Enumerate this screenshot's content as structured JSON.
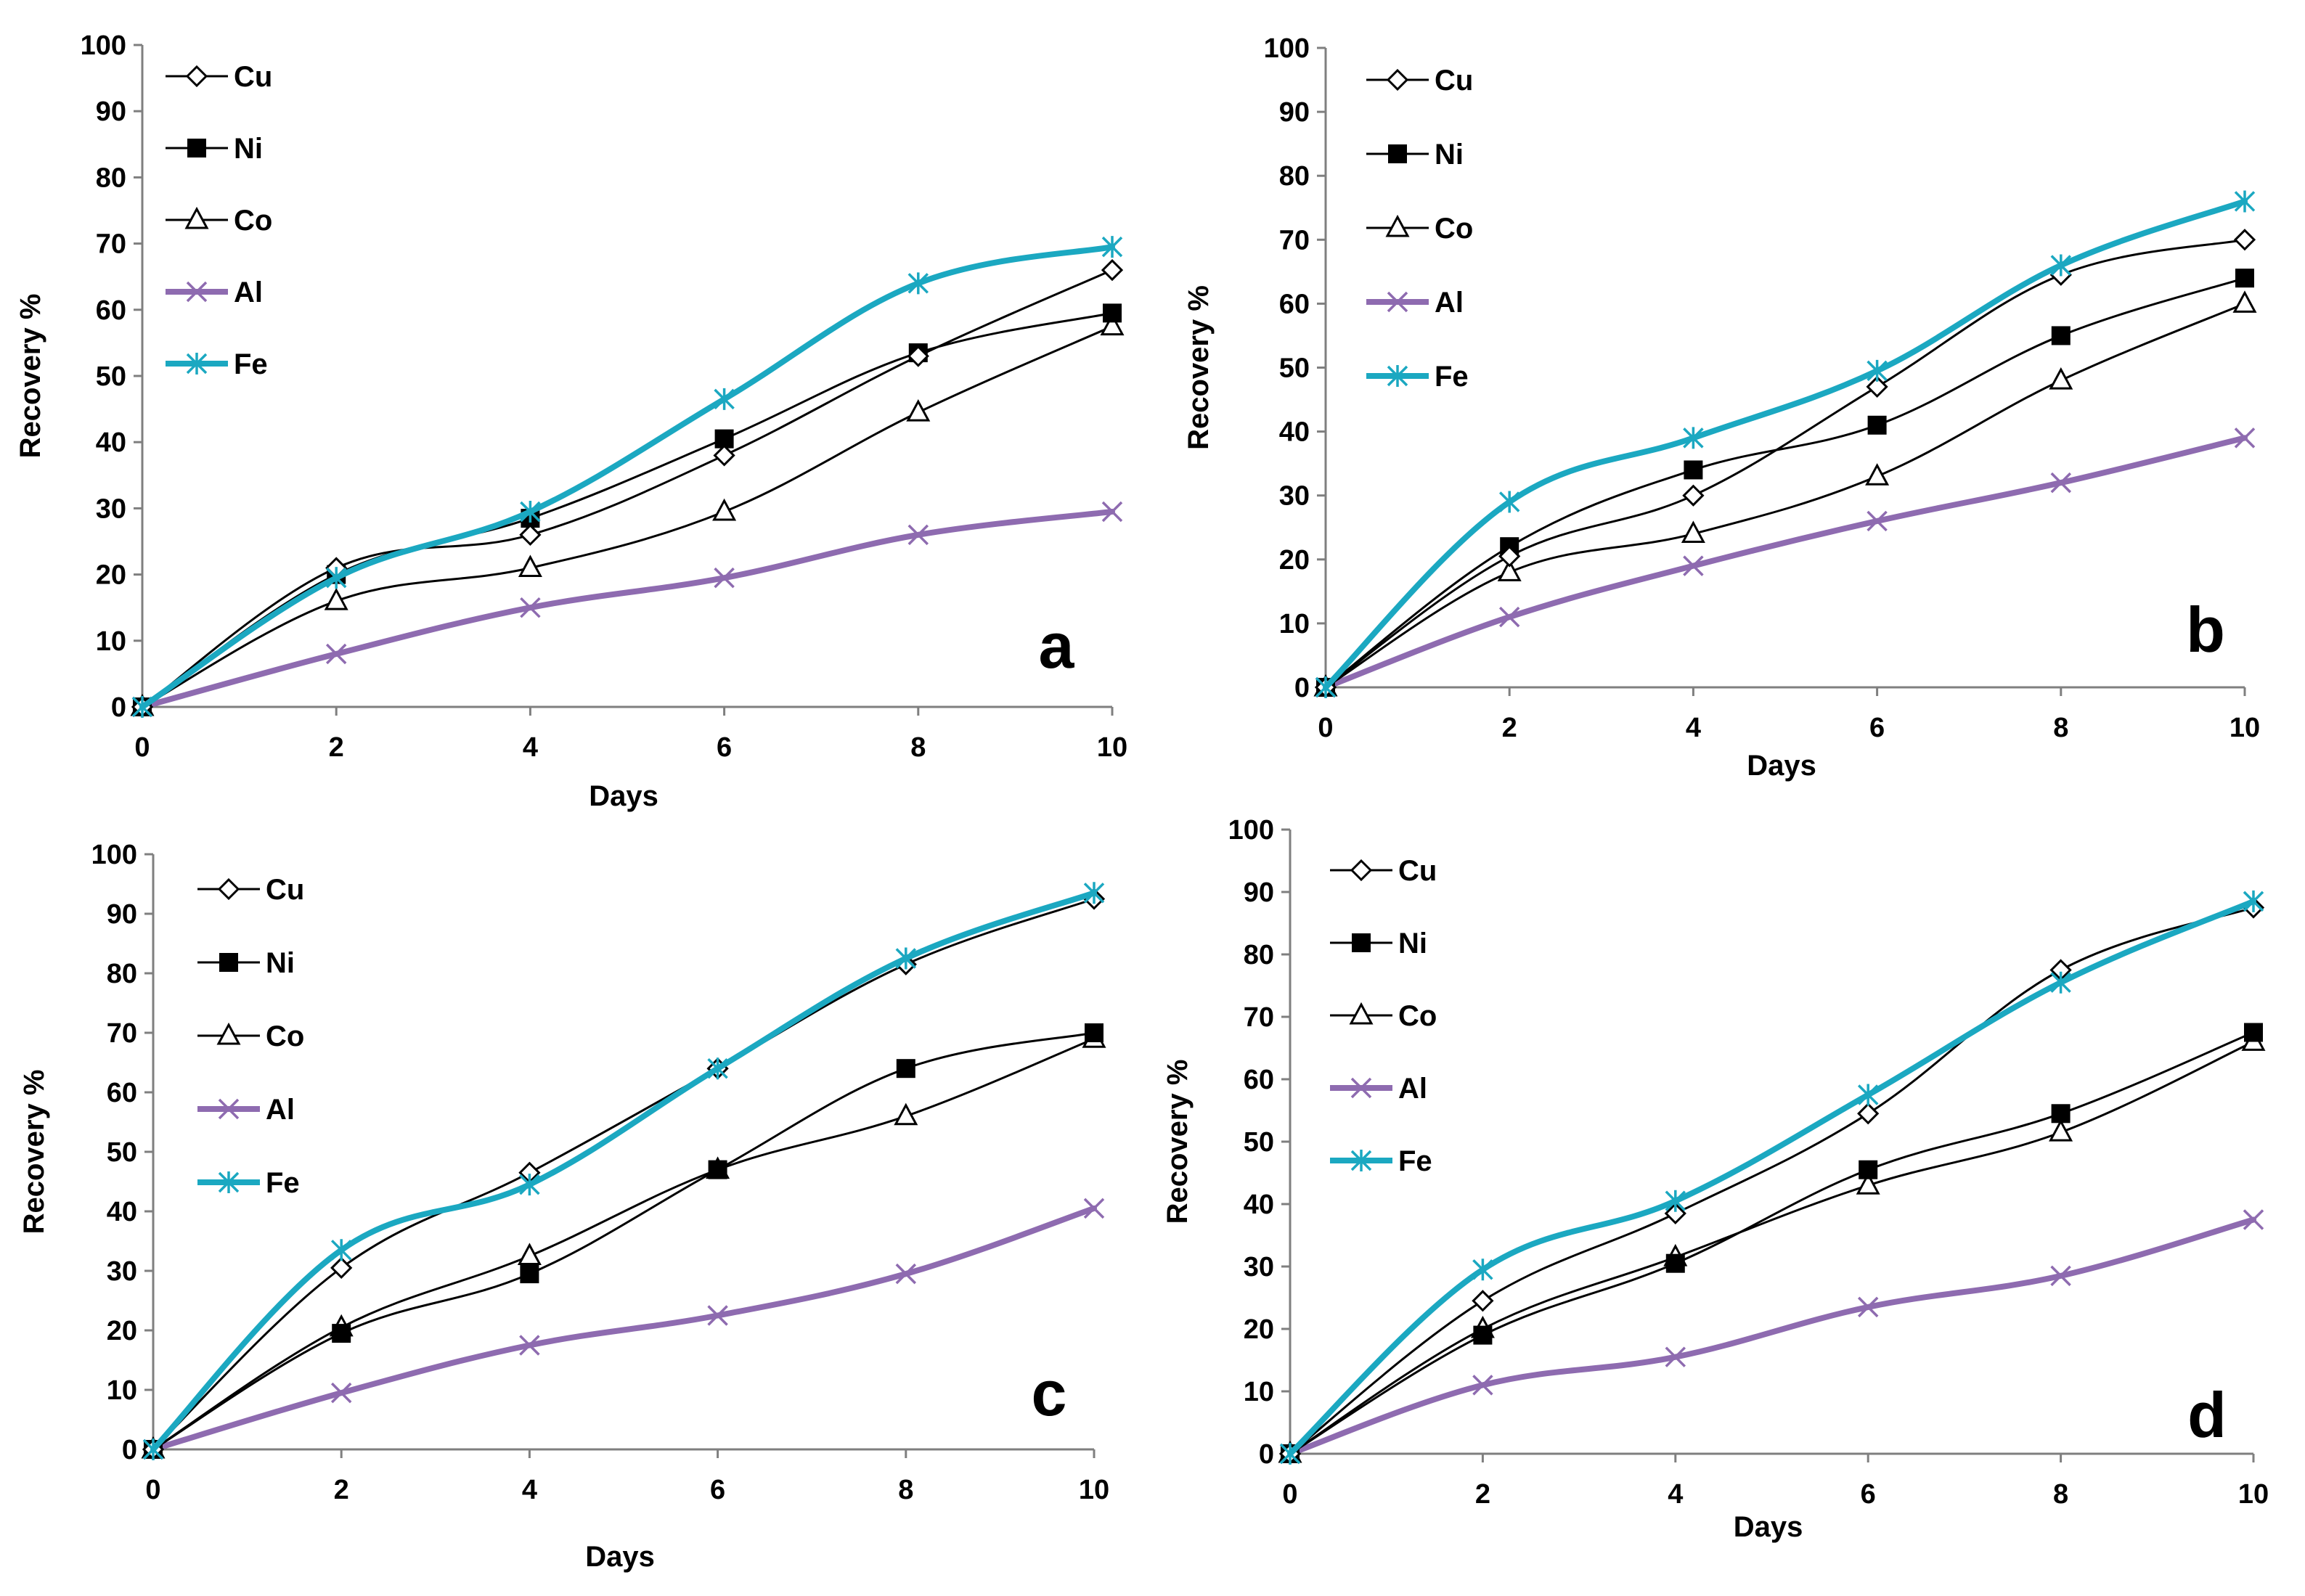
{
  "figure": {
    "series_styles": [
      {
        "name": "Cu",
        "color": "#000000",
        "marker": "diamond-open",
        "width": "thin"
      },
      {
        "name": "Ni",
        "color": "#000000",
        "marker": "square-filled",
        "width": "thin"
      },
      {
        "name": "Co",
        "color": "#000000",
        "marker": "triangle-open",
        "width": "thin"
      },
      {
        "name": "Al",
        "color": "#8e6bb0",
        "marker": "x",
        "width": "thick"
      },
      {
        "name": "Fe",
        "color": "#1ba8c1",
        "marker": "star",
        "width": "thick"
      }
    ]
  },
  "chart_data": [
    {
      "type": "line",
      "panel_label": "a",
      "xlabel": "Days",
      "ylabel": "Recovery %",
      "x": [
        0,
        2,
        4,
        6,
        8,
        10
      ],
      "xlim": [
        0,
        10
      ],
      "ylim": [
        0,
        100
      ],
      "xticks": [
        "0",
        "2",
        "4",
        "6",
        "8",
        "10"
      ],
      "yticks": [
        "0",
        "10",
        "20",
        "30",
        "40",
        "50",
        "60",
        "70",
        "80",
        "90",
        "100"
      ],
      "legend_position": "top-left",
      "series": [
        {
          "name": "Cu",
          "values": [
            0,
            21,
            26,
            38,
            53,
            66
          ]
        },
        {
          "name": "Ni",
          "values": [
            0,
            20,
            28.5,
            40.5,
            53.5,
            59.5
          ]
        },
        {
          "name": "Co",
          "values": [
            0,
            16,
            21,
            29.5,
            44.5,
            57.5
          ]
        },
        {
          "name": "Al",
          "values": [
            0,
            8,
            15,
            19.5,
            26,
            29.5
          ]
        },
        {
          "name": "Fe",
          "values": [
            0,
            19.5,
            29.5,
            46.5,
            64,
            69.5
          ]
        }
      ]
    },
    {
      "type": "line",
      "panel_label": "b",
      "xlabel": "Days",
      "ylabel": "Recovery %",
      "x": [
        0,
        2,
        4,
        6,
        8,
        10
      ],
      "xlim": [
        0,
        10
      ],
      "ylim": [
        0,
        100
      ],
      "xticks": [
        "0",
        "2",
        "4",
        "6",
        "8",
        "10"
      ],
      "yticks": [
        "0",
        "10",
        "20",
        "30",
        "40",
        "50",
        "60",
        "70",
        "80",
        "90",
        "100"
      ],
      "legend_position": "top-left",
      "series": [
        {
          "name": "Cu",
          "values": [
            0,
            20.5,
            30,
            47,
            64.5,
            70
          ]
        },
        {
          "name": "Ni",
          "values": [
            0,
            22,
            34,
            41,
            55,
            64
          ]
        },
        {
          "name": "Co",
          "values": [
            0,
            18,
            24,
            33,
            48,
            60
          ]
        },
        {
          "name": "Al",
          "values": [
            0,
            11,
            19,
            26,
            32,
            39
          ]
        },
        {
          "name": "Fe",
          "values": [
            0,
            29,
            39,
            49.5,
            66,
            76
          ]
        }
      ]
    },
    {
      "type": "line",
      "panel_label": "c",
      "xlabel": "Days",
      "ylabel": "Recovery %",
      "x": [
        0,
        2,
        4,
        6,
        8,
        10
      ],
      "xlim": [
        0,
        10
      ],
      "ylim": [
        0,
        100
      ],
      "xticks": [
        "0",
        "2",
        "4",
        "6",
        "8",
        "10"
      ],
      "yticks": [
        "0",
        "10",
        "20",
        "30",
        "40",
        "50",
        "60",
        "70",
        "80",
        "90",
        "100"
      ],
      "legend_position": "top-left",
      "series": [
        {
          "name": "Cu",
          "values": [
            0,
            30.5,
            46.5,
            64,
            81.5,
            92.5
          ]
        },
        {
          "name": "Ni",
          "values": [
            0,
            19.5,
            29.5,
            47,
            64,
            70
          ]
        },
        {
          "name": "Co",
          "values": [
            0,
            20.5,
            32.5,
            47,
            56,
            69
          ]
        },
        {
          "name": "Al",
          "values": [
            0,
            9.5,
            17.5,
            22.5,
            29.5,
            40.5
          ]
        },
        {
          "name": "Fe",
          "values": [
            0,
            33.5,
            44.5,
            64,
            82.5,
            93.5
          ]
        }
      ]
    },
    {
      "type": "line",
      "panel_label": "d",
      "xlabel": "Days",
      "ylabel": "Recovery %",
      "x": [
        0,
        2,
        4,
        6,
        8,
        10
      ],
      "xlim": [
        0,
        10
      ],
      "ylim": [
        0,
        100
      ],
      "xticks": [
        "0",
        "2",
        "4",
        "6",
        "8",
        "10"
      ],
      "yticks": [
        "0",
        "10",
        "20",
        "30",
        "40",
        "50",
        "60",
        "70",
        "80",
        "90",
        "100"
      ],
      "legend_position": "top-left",
      "series": [
        {
          "name": "Cu",
          "values": [
            0,
            24.5,
            38.5,
            54.5,
            77.5,
            87.5
          ]
        },
        {
          "name": "Ni",
          "values": [
            0,
            19,
            30.5,
            45.5,
            54.5,
            67.5
          ]
        },
        {
          "name": "Co",
          "values": [
            0,
            20,
            31.5,
            43,
            51.5,
            66
          ]
        },
        {
          "name": "Al",
          "values": [
            0,
            11,
            15.5,
            23.5,
            28.5,
            37.5
          ]
        },
        {
          "name": "Fe",
          "values": [
            0,
            29.5,
            40.5,
            57.5,
            75.5,
            88.5
          ]
        }
      ]
    }
  ]
}
